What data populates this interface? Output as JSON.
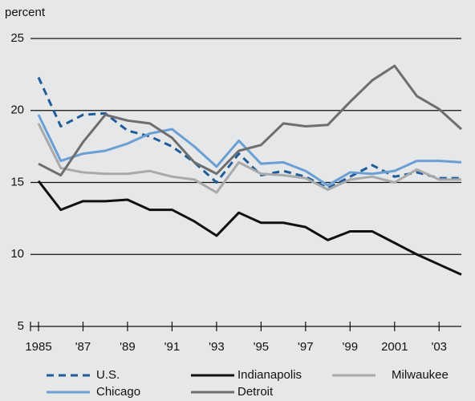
{
  "chart_data": {
    "type": "line",
    "y_label": "percent",
    "x": [
      1985,
      1986,
      1987,
      1988,
      1989,
      1990,
      1991,
      1992,
      1993,
      1994,
      1995,
      1996,
      1997,
      1998,
      1999,
      2000,
      2001,
      2002,
      2003,
      2004
    ],
    "xlim": [
      1985,
      2004
    ],
    "xticks": [
      {
        "value": 1985,
        "label": "1985"
      },
      {
        "value": 1987,
        "label": "'87"
      },
      {
        "value": 1989,
        "label": "'89"
      },
      {
        "value": 1991,
        "label": "'91"
      },
      {
        "value": 1993,
        "label": "'93"
      },
      {
        "value": 1995,
        "label": "'95"
      },
      {
        "value": 1997,
        "label": "'97"
      },
      {
        "value": 1999,
        "label": "'99"
      },
      {
        "value": 2001,
        "label": "2001"
      },
      {
        "value": 2003,
        "label": "'03"
      }
    ],
    "ylim": [
      5,
      25
    ],
    "yticks": [
      5,
      10,
      15,
      20,
      25
    ],
    "grid": true,
    "legend": "bottom",
    "series": [
      {
        "name": "U.S.",
        "color": "#1f5c99",
        "dashed": true,
        "values": [
          22.3,
          18.9,
          19.7,
          19.8,
          18.6,
          18.2,
          17.5,
          16.4,
          15.0,
          17.0,
          15.5,
          15.8,
          15.4,
          14.6,
          15.4,
          16.2,
          15.4,
          15.7,
          15.3,
          15.3
        ]
      },
      {
        "name": "Indianapolis",
        "color": "#111111",
        "values": [
          15.1,
          13.1,
          13.7,
          13.7,
          13.8,
          13.1,
          13.1,
          12.3,
          11.3,
          12.9,
          12.2,
          12.2,
          11.9,
          11.0,
          11.6,
          11.6,
          10.8,
          10.0,
          9.3,
          8.6
        ]
      },
      {
        "name": "Milwaukee",
        "color": "#a8a9ab",
        "values": [
          19.1,
          16.0,
          15.7,
          15.6,
          15.6,
          15.8,
          15.4,
          15.2,
          14.3,
          16.4,
          15.6,
          15.5,
          15.3,
          14.5,
          15.2,
          15.4,
          15.0,
          15.9,
          15.2,
          15.2
        ]
      },
      {
        "name": "Chicago",
        "color": "#6a9fd4",
        "values": [
          19.7,
          16.5,
          17.0,
          17.2,
          17.7,
          18.4,
          18.7,
          17.5,
          16.1,
          17.9,
          16.3,
          16.4,
          15.8,
          14.8,
          15.7,
          15.6,
          15.8,
          16.5,
          16.5,
          16.4
        ]
      },
      {
        "name": "Detroit",
        "color": "#6d6e70",
        "values": [
          16.3,
          15.5,
          17.8,
          19.7,
          19.3,
          19.1,
          18.1,
          16.4,
          15.6,
          17.2,
          17.6,
          19.1,
          18.9,
          19.0,
          20.6,
          22.1,
          23.1,
          21.0,
          20.1,
          18.7
        ]
      }
    ]
  }
}
